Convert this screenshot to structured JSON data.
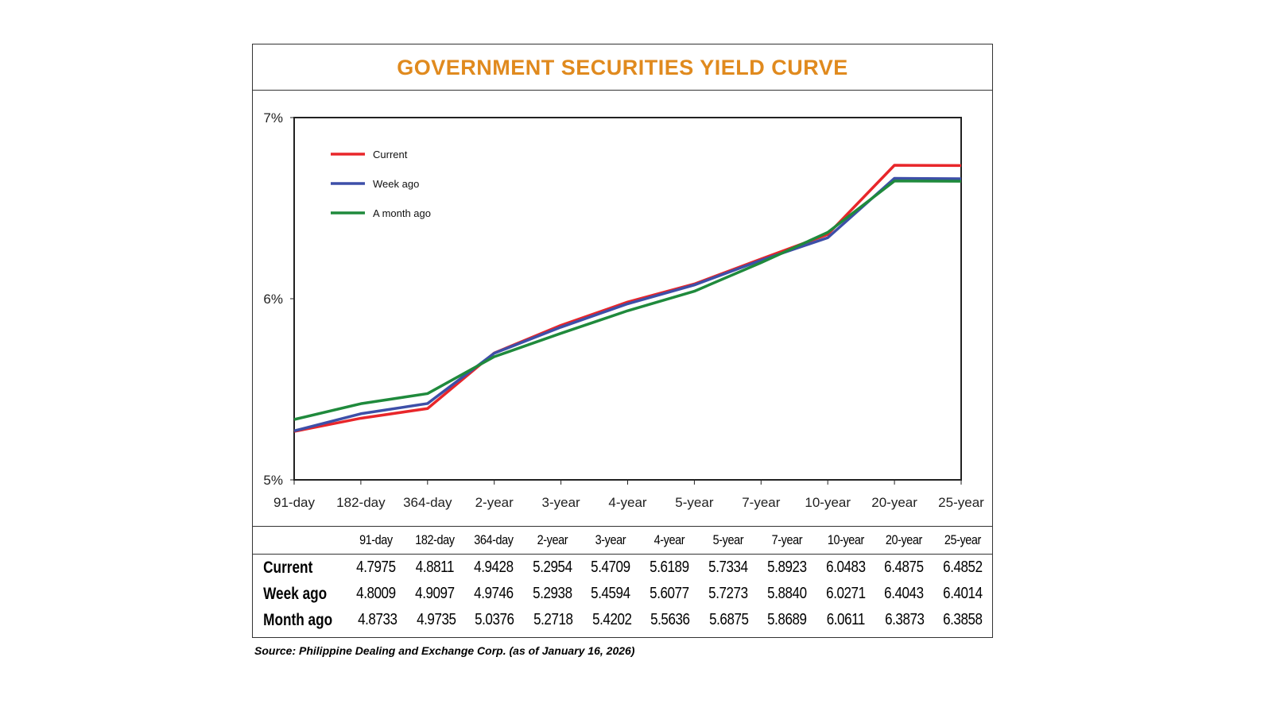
{
  "title": "GOVERNMENT SECURITIES YIELD CURVE",
  "source": "Source: Philippine Dealing and Exchange Corp. (as of January 16, 2026)",
  "chart_data": {
    "type": "line",
    "categories": [
      "91-day",
      "182-day",
      "364-day",
      "2-year",
      "3-year",
      "4-year",
      "5-year",
      "7-year",
      "10-year",
      "20-year",
      "25-year"
    ],
    "y_tick_labels": [
      "5%",
      "6%",
      "7%"
    ],
    "ylim": [
      4.49,
      6.79
    ],
    "grid": false,
    "legend": "top-left",
    "series": [
      {
        "name": "Current",
        "color": "#e8262a",
        "values": [
          4.7975,
          4.8811,
          4.9428,
          5.2954,
          5.4709,
          5.6189,
          5.7334,
          5.8923,
          6.0483,
          6.4875,
          6.4852
        ]
      },
      {
        "name": "Week ago",
        "color": "#3d4fa8",
        "values": [
          4.8009,
          4.9097,
          4.9746,
          5.2938,
          5.4594,
          5.6077,
          5.7273,
          5.884,
          6.0271,
          6.4043,
          6.4014
        ]
      },
      {
        "name": "A month ago",
        "color": "#1f8a3c",
        "values": [
          4.8733,
          4.9735,
          5.0376,
          5.2718,
          5.4202,
          5.5636,
          5.6875,
          5.8689,
          6.0611,
          6.3873,
          6.3858
        ]
      }
    ]
  },
  "table": {
    "headers": [
      "91-day",
      "182-day",
      "364-day",
      "2-year",
      "3-year",
      "4-year",
      "5-year",
      "7-year",
      "10-year",
      "20-year",
      "25-year"
    ],
    "rows": [
      {
        "label": "Current",
        "values": [
          "4.7975",
          "4.8811",
          "4.9428",
          "5.2954",
          "5.4709",
          "5.6189",
          "5.7334",
          "5.8923",
          "6.0483",
          "6.4875",
          "6.4852"
        ]
      },
      {
        "label": "Week ago",
        "values": [
          "4.8009",
          "4.9097",
          "4.9746",
          "5.2938",
          "5.4594",
          "5.6077",
          "5.7273",
          "5.8840",
          "6.0271",
          "6.4043",
          "6.4014"
        ]
      },
      {
        "label": "Month ago",
        "values": [
          "4.8733",
          "4.9735",
          "5.0376",
          "5.2718",
          "5.4202",
          "5.5636",
          "5.6875",
          "5.8689",
          "6.0611",
          "6.3873",
          "6.3858"
        ]
      }
    ]
  }
}
